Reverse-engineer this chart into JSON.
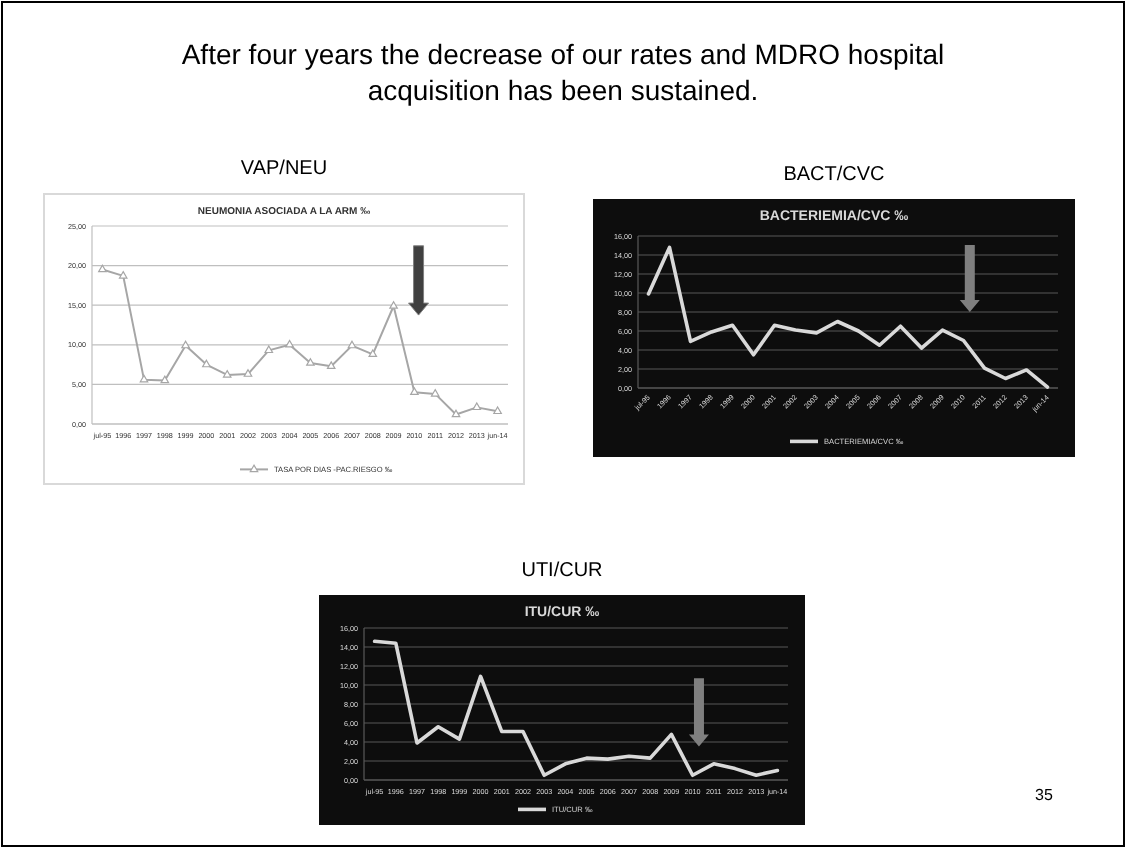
{
  "chart_data": [
    {
      "type": "line",
      "title": "NEUMONIA ASOCIADA A LA ARM ‰",
      "subtitle": "VAP/NEU",
      "annotations": [
        "After four years the decrease of our rates and MDRO hospital acquisition has been sustained."
      ],
      "categories": [
        "jul-95",
        "1996",
        "1997",
        "1998",
        "1999",
        "2000",
        "2001",
        "2002",
        "2003",
        "2004",
        "2005",
        "2006",
        "2007",
        "2008",
        "2009",
        "2010",
        "2011",
        "2012",
        "2013",
        "jun-14"
      ],
      "series": [
        {
          "name": "TASA POR DIAS -PAC.RIESGO ‰",
          "color": "#a6a6a6",
          "values": [
            19.5,
            18.7,
            5.6,
            5.5,
            9.9,
            7.5,
            6.2,
            6.3,
            9.3,
            10.0,
            7.7,
            7.3,
            9.9,
            8.8,
            14.9,
            4.0,
            3.8,
            1.2,
            2.1,
            1.6
          ]
        }
      ],
      "ylim": [
        0,
        25
      ],
      "yticks": [
        {
          "value": 0,
          "label": "0,00"
        },
        {
          "value": 5,
          "label": "5,00"
        },
        {
          "value": 10,
          "label": "10,00"
        },
        {
          "value": 15,
          "label": "15,00"
        },
        {
          "value": 20,
          "label": "20,00"
        },
        {
          "value": 25,
          "label": "25,00"
        }
      ],
      "grid": "y",
      "legend": "bottom",
      "marker": "triangle"
    },
    {
      "type": "line",
      "title": "BACTERIEMIA/CVC ‰",
      "subtitle": "BACT/CVC",
      "categories": [
        "jul-95",
        "1996",
        "1997",
        "1998",
        "1999",
        "2000",
        "2001",
        "2002",
        "2003",
        "2004",
        "2005",
        "2006",
        "2007",
        "2008",
        "2009",
        "2010",
        "2011",
        "2012",
        "2013",
        "jun-14"
      ],
      "series": [
        {
          "name": "BACTERIEMIA/CVC ‰",
          "color": "#d9d9d9",
          "values": [
            9.9,
            14.8,
            4.9,
            5.9,
            6.6,
            3.5,
            6.6,
            6.1,
            5.8,
            7.0,
            6.0,
            4.5,
            6.5,
            4.2,
            6.1,
            5.0,
            2.1,
            1.0,
            1.9,
            0.1
          ]
        }
      ],
      "ylim": [
        0,
        16
      ],
      "yticks": [
        {
          "value": 0,
          "label": "0,00"
        },
        {
          "value": 2,
          "label": "2,00"
        },
        {
          "value": 4,
          "label": "4,00"
        },
        {
          "value": 6,
          "label": "6,00"
        },
        {
          "value": 8,
          "label": "8,00"
        },
        {
          "value": 10,
          "label": "10,00"
        },
        {
          "value": 12,
          "label": "12,00"
        },
        {
          "value": 14,
          "label": "14,00"
        },
        {
          "value": 16,
          "label": "16,00"
        }
      ],
      "grid": "y",
      "legend": "bottom"
    },
    {
      "type": "line",
      "title": "ITU/CUR ‰",
      "subtitle": "UTI/CUR",
      "annotations": [
        "35"
      ],
      "categories": [
        "jul-95",
        "1996",
        "1997",
        "1998",
        "1999",
        "2000",
        "2001",
        "2002",
        "2003",
        "2004",
        "2005",
        "2006",
        "2007",
        "2008",
        "2009",
        "2010",
        "2011",
        "2012",
        "2013",
        "jun-14"
      ],
      "series": [
        {
          "name": "ITU/CUR ‰",
          "color": "#d9d9d9",
          "values": [
            14.6,
            14.4,
            3.9,
            5.6,
            4.3,
            10.9,
            5.1,
            5.1,
            0.5,
            1.7,
            2.3,
            2.2,
            2.5,
            2.3,
            4.8,
            0.5,
            1.7,
            1.2,
            0.5,
            1.0
          ]
        }
      ],
      "ylim": [
        0,
        16
      ],
      "yticks": [
        {
          "value": 0,
          "label": "0,00"
        },
        {
          "value": 2,
          "label": "2,00"
        },
        {
          "value": 4,
          "label": "4,00"
        },
        {
          "value": 6,
          "label": "6,00"
        },
        {
          "value": 8,
          "label": "8,00"
        },
        {
          "value": 10,
          "label": "10,00"
        },
        {
          "value": 12,
          "label": "12,00"
        },
        {
          "value": 14,
          "label": "14,00"
        },
        {
          "value": 16,
          "label": "16,00"
        }
      ],
      "grid": "y",
      "legend": "bottom"
    }
  ]
}
